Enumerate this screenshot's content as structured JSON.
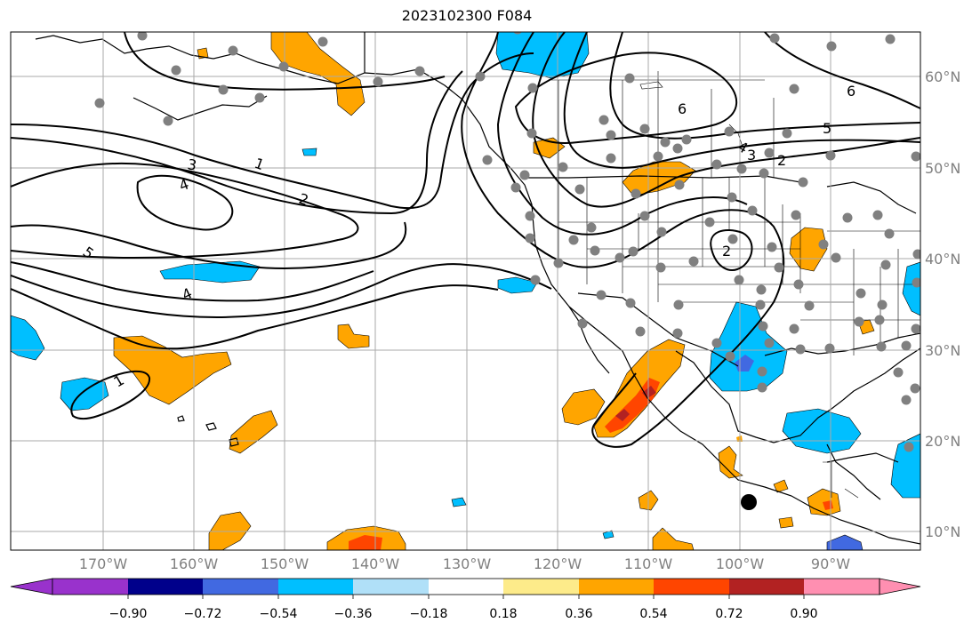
{
  "title": "2023102300 F084",
  "map": {
    "lat_labels": [
      "60°N",
      "50°N",
      "40°N",
      "30°N",
      "20°N",
      "10°N"
    ],
    "lon_labels": [
      "170°W",
      "160°W",
      "150°W",
      "140°W",
      "130°W",
      "120°W",
      "110°W",
      "100°W",
      "90°W"
    ],
    "contour_labels": [
      "1",
      "2",
      "3",
      "4",
      "5",
      "5",
      "6",
      "6",
      "5",
      "4",
      "3",
      "2",
      "2",
      "1",
      "4"
    ]
  },
  "colorbar": {
    "tick_labels": [
      "−0.90",
      "−0.72",
      "−0.54",
      "−0.36",
      "−0.18",
      "0.18",
      "0.36",
      "0.54",
      "0.72",
      "0.90"
    ],
    "colors": [
      "#9932cc",
      "#00008b",
      "#4169e1",
      "#00bfff",
      "#b0e0f8",
      "#ffffff",
      "#fdeb8a",
      "#ffa500",
      "#ff4500",
      "#b22222",
      "#ff8fb1"
    ]
  }
}
